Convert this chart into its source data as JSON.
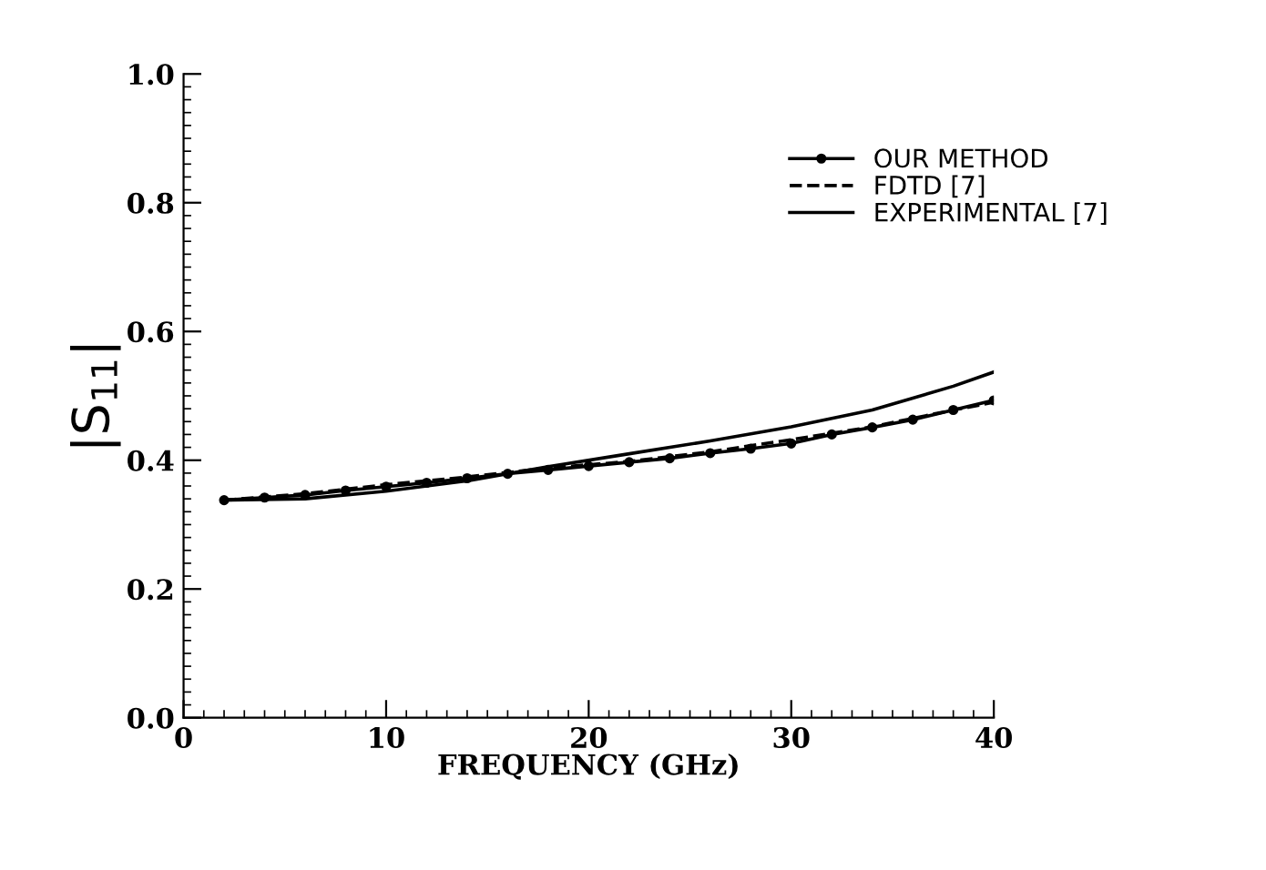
{
  "chart_data": {
    "type": "line",
    "xlabel": "FREQUENCY (GHz)",
    "ylabel": "|S$_{11}$|",
    "xlim": [
      0,
      40
    ],
    "xticks": [
      0,
      10,
      20,
      30,
      40
    ],
    "ylim": [
      0.0,
      1.0
    ],
    "yticks": [
      {
        "value": 0.0,
        "label": "0.0"
      },
      0.2,
      0.4,
      0.6,
      0.8,
      {
        "value": 1.0,
        "label": "1.0"
      }
    ],
    "grid": false,
    "legend": "top right",
    "series": [
      {
        "name": "OUR METHOD",
        "color": "#000000",
        "line_style": "solid",
        "marker": "circle",
        "x": [
          2,
          4,
          6,
          8,
          10,
          12,
          14,
          16,
          18,
          20,
          22,
          24,
          26,
          28,
          30,
          32,
          34,
          36,
          38,
          40
        ],
        "values": [
          0.338,
          0.342,
          0.346,
          0.353,
          0.359,
          0.365,
          0.372,
          0.379,
          0.385,
          0.391,
          0.397,
          0.403,
          0.411,
          0.418,
          0.426,
          0.44,
          0.451,
          0.463,
          0.478,
          0.493
        ]
      },
      {
        "name": "FDTD [7]",
        "color": "#000000",
        "line_style": "dashed",
        "marker": "none",
        "x": [
          2,
          6,
          10,
          14,
          18,
          22,
          26,
          30,
          34,
          38,
          40
        ],
        "values": [
          0.338,
          0.348,
          0.362,
          0.374,
          0.388,
          0.398,
          0.413,
          0.432,
          0.452,
          0.478,
          0.49
        ]
      },
      {
        "name": "EXPERIMENTAL [7]",
        "color": "#000000",
        "line_style": "solid",
        "marker": "none",
        "x": [
          2,
          6,
          10,
          14,
          18,
          22,
          26,
          30,
          34,
          38,
          40
        ],
        "values": [
          0.338,
          0.34,
          0.352,
          0.368,
          0.39,
          0.41,
          0.43,
          0.452,
          0.478,
          0.515,
          0.537
        ]
      }
    ]
  }
}
